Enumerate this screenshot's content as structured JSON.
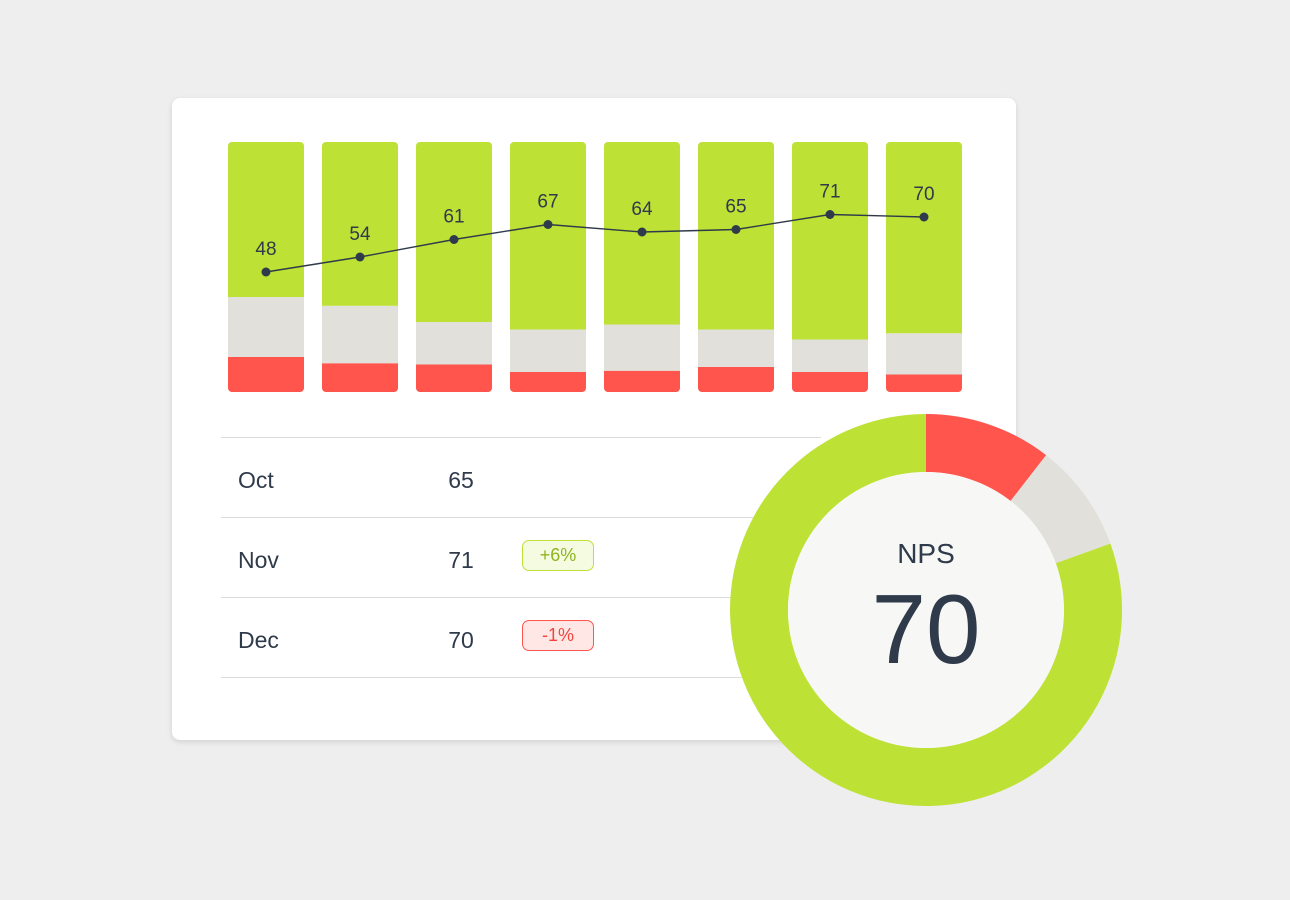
{
  "colors": {
    "promoters": "#bde135",
    "passives": "#e1e0da",
    "detractors": "#ff554d",
    "line": "#2f3a4a"
  },
  "chart_data": [
    {
      "type": "bar",
      "stacked": true,
      "series": [
        {
          "name": "",
          "color": "#ff554d",
          "values": [
            14,
            11.5,
            11,
            8,
            8.5,
            10,
            8,
            7
          ]
        },
        {
          "name": "",
          "color": "#e1e0da",
          "values": [
            24,
            23,
            17,
            17,
            18.5,
            15,
            13,
            16.5
          ]
        },
        {
          "name": "",
          "color": "#bde135",
          "values": [
            62,
            65.5,
            72,
            75,
            73,
            75,
            79,
            76.5
          ]
        }
      ],
      "line": {
        "values": [
          48,
          54,
          61,
          67,
          64,
          65,
          71,
          70
        ],
        "range": [
          0,
          100
        ]
      },
      "ylim": [
        0,
        100
      ]
    },
    {
      "type": "pie",
      "donut": true,
      "slices": [
        {
          "name": "",
          "value": 10.5,
          "color": "#ff554d"
        },
        {
          "name": "",
          "value": 9,
          "color": "#e1e0da"
        },
        {
          "name": "",
          "value": 80.5,
          "color": "#bde135"
        }
      ],
      "center_label": "NPS",
      "center_value": "70"
    }
  ],
  "table": {
    "rows": [
      {
        "month": "Oct",
        "value": "65",
        "change": ""
      },
      {
        "month": "Nov",
        "value": "71",
        "change": "+6%"
      },
      {
        "month": "Dec",
        "value": "70",
        "change": "-1%"
      }
    ]
  }
}
